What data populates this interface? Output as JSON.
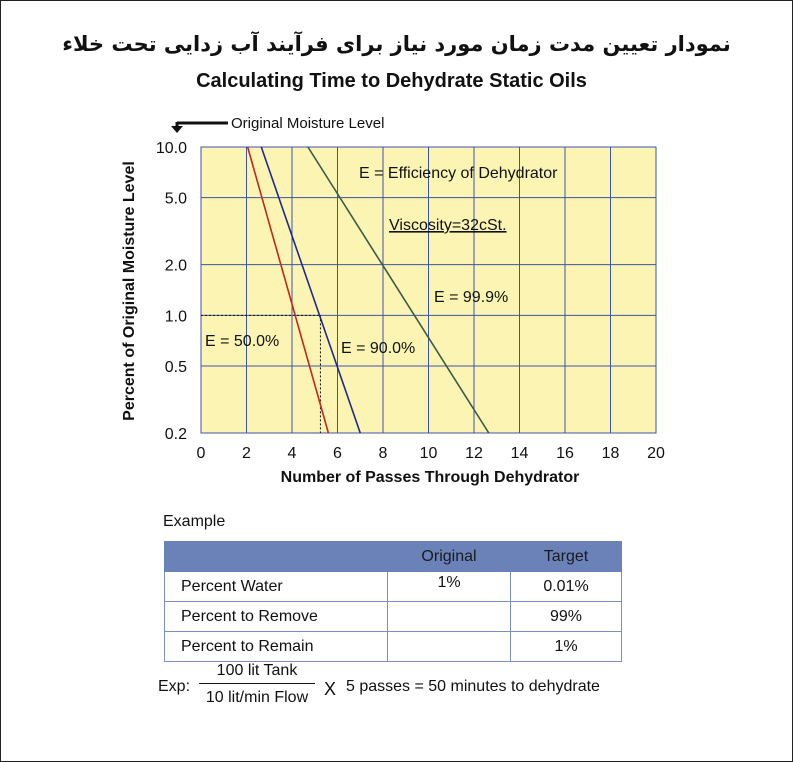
{
  "title_fa": "نمودار تعیین مدت زمان مورد نیاز برای فرآیند آب زدایی تحت خلاء",
  "title_en": "Calculating Time to Dehydrate Static Oils",
  "chart_data": {
    "type": "line",
    "xlabel": "Number of Passes Through Dehydrator",
    "ylabel": "Percent of Original Moisture Level",
    "x_ticks": [
      "0",
      "2",
      "4",
      "6",
      "8",
      "10",
      "12",
      "14",
      "16",
      "18",
      "20"
    ],
    "y_ticks": [
      "10.0",
      "5.0",
      "2.0",
      "1.0",
      "0.5",
      "0.2"
    ],
    "xlim": [
      0,
      20
    ],
    "ylim": [
      0.2,
      10.0
    ],
    "y_scale": "log",
    "grid": true,
    "background_color": "#fbf4b2",
    "annotations": {
      "efficiency_note": "E = Efficiency of Dehydrator",
      "viscosity": "Viscosity=32cSt.",
      "original_level": "Original Moisture Level"
    },
    "series": [
      {
        "name": "E = 50.0%",
        "color": "#c0281e",
        "x": [
          2.05,
          5.6
        ],
        "y": [
          10.0,
          0.2
        ]
      },
      {
        "name": "E = 90.0%",
        "color": "#1e2a8c",
        "x": [
          2.65,
          7.0
        ],
        "y": [
          10.0,
          0.2
        ]
      },
      {
        "name": "E = 99.9%",
        "color": "#3a5a4a",
        "x": [
          4.7,
          12.65
        ],
        "y": [
          10.0,
          0.2
        ]
      }
    ],
    "example_guide": {
      "x": 5.25,
      "y": 1.0
    }
  },
  "example": {
    "label": "Example",
    "headers": [
      "",
      "Original",
      "Target"
    ],
    "rows": [
      {
        "label": "Percent Water",
        "original": "1%",
        "target": "0.01%"
      },
      {
        "label": "Percent to Remove",
        "original": "",
        "target": "99%"
      },
      {
        "label": "Percent to Remain",
        "original": "",
        "target": "1%"
      }
    ]
  },
  "formula": {
    "label": "Exp:",
    "numerator": "100 lit Tank",
    "denominator": "10 lit/min Flow",
    "times": "X",
    "result": "5 passes = 50 minutes to dehydrate"
  }
}
